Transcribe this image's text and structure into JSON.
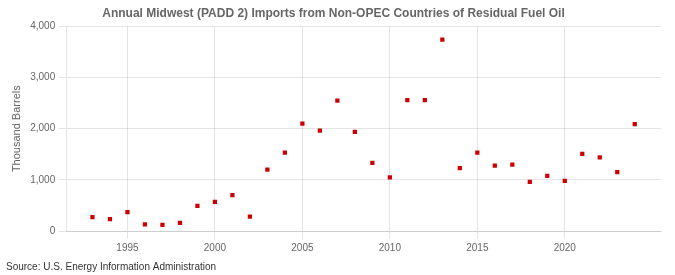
{
  "chart_data": {
    "type": "scatter",
    "title": "Annual Midwest (PADD 2) Imports from Non-OPEC Countries of Residual Fuel Oil",
    "y_label": "Thousand Barrels",
    "annotations": [
      "Source: U.S. Energy Information Administration"
    ],
    "x": [
      1993,
      1994,
      1995,
      1996,
      1997,
      1998,
      1999,
      2000,
      2001,
      2002,
      2003,
      2004,
      2005,
      2006,
      2007,
      2008,
      2009,
      2010,
      2011,
      2012,
      2013,
      2014,
      2015,
      2016,
      2017,
      2018,
      2019,
      2020,
      2021,
      2022,
      2023,
      2024
    ],
    "values": [
      270,
      230,
      370,
      130,
      120,
      160,
      490,
      570,
      700,
      280,
      1200,
      1530,
      2100,
      1960,
      2550,
      1940,
      1330,
      1050,
      2560,
      2560,
      3740,
      1230,
      1530,
      1280,
      1300,
      960,
      1080,
      980,
      1510,
      1440,
      1150,
      2090
    ],
    "color": "#cc0000",
    "marker": "square",
    "xlim": [
      1991.5,
      2025.5
    ],
    "xticks": [
      1995,
      2000,
      2005,
      2010,
      2015,
      2020
    ],
    "ylim": [
      0,
      4000
    ],
    "yticks": [
      0,
      {
        "value": 1000,
        "label": "1,000"
      },
      {
        "value": 2000,
        "label": "2,000"
      },
      {
        "value": 3000,
        "label": "3,000"
      },
      {
        "value": 4000,
        "label": "4,000"
      }
    ],
    "grid": true
  }
}
